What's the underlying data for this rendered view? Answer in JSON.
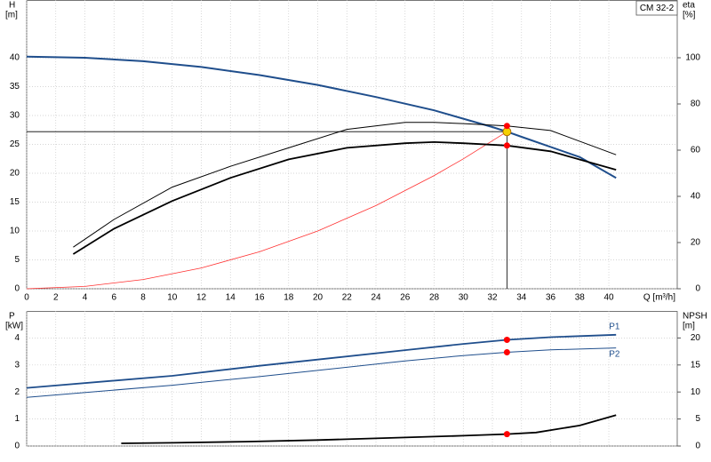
{
  "chart_data": [
    {
      "type": "line",
      "title": "CM 32-2",
      "x_label": "Q [m³/h]",
      "y_label": "H",
      "y_unit": "[m]",
      "y2_label": "eta",
      "y2_unit": "[%]",
      "xlim": [
        0,
        44.7
      ],
      "xticks": [
        0,
        2,
        4,
        6,
        8,
        10,
        12,
        14,
        16,
        18,
        20,
        22,
        24,
        26,
        28,
        30,
        32,
        34,
        36,
        38,
        40
      ],
      "ylim": [
        0,
        50
      ],
      "yticks": [
        0,
        5,
        10,
        15,
        20,
        25,
        30,
        35,
        40
      ],
      "y2lim": [
        0,
        125
      ],
      "y2ticks": [
        0,
        20,
        40,
        60,
        80,
        100
      ],
      "grid": true,
      "duty_lines": true,
      "series": [
        {
          "color": "#1f4e8c",
          "width": 2,
          "x": [
            0,
            4,
            8,
            12,
            16,
            20,
            24,
            28,
            32,
            33,
            34,
            38,
            40.5
          ],
          "values": [
            40.2,
            40,
            39.4,
            38.4,
            37,
            35.3,
            33.2,
            30.9,
            28,
            27.2,
            26.3,
            22.8,
            19.2
          ]
        },
        {
          "color": "#ff3030",
          "width": 0.8,
          "x": [
            0,
            4,
            8,
            12,
            16,
            20,
            24,
            28,
            30,
            33
          ],
          "values": [
            0,
            0.4,
            1.6,
            3.6,
            6.4,
            10,
            14.4,
            19.6,
            22.5,
            27.2
          ]
        },
        {
          "color": "#000000",
          "width": 1,
          "axis": "y2",
          "x": [
            3.2,
            6,
            10,
            14,
            18,
            22,
            26,
            28,
            30,
            33,
            36,
            40.5
          ],
          "values": [
            18,
            30,
            44,
            53,
            61,
            69,
            72,
            72,
            71.5,
            70.5,
            68.5,
            58
          ]
        },
        {
          "color": "#000000",
          "width": 1.8,
          "axis": "y2",
          "x": [
            3.2,
            6,
            10,
            14,
            18,
            22,
            26,
            28,
            30,
            33,
            36,
            40.5
          ],
          "values": [
            15,
            26,
            38,
            48,
            56,
            61,
            63,
            63.5,
            63,
            62,
            59.5,
            51.5
          ]
        }
      ],
      "markers": [
        {
          "x": 33,
          "value": 27.2,
          "color": "#f5d000"
        },
        {
          "x": 33,
          "value": 70.5,
          "axis": "y2",
          "color": "#ff0000"
        },
        {
          "x": 33,
          "value": 62,
          "axis": "y2",
          "color": "#ff0000"
        }
      ]
    },
    {
      "type": "line",
      "y_label": "P",
      "y_unit": "[kW]",
      "y2_label": "NPSH",
      "y2_unit": "[m]",
      "xlim": [
        0,
        44.7
      ],
      "xticks": [
        0,
        2,
        4,
        6,
        8,
        10,
        12,
        14,
        16,
        18,
        20,
        22,
        24,
        26,
        28,
        30,
        32,
        34,
        36,
        38,
        40
      ],
      "ylim": [
        0,
        5
      ],
      "yticks": [
        0,
        1,
        2,
        3,
        4
      ],
      "y2lim": [
        0,
        25
      ],
      "y2ticks": [
        0,
        5,
        10,
        15,
        20
      ],
      "grid": true,
      "series": [
        {
          "label": "P1",
          "color": "#1f4e8c",
          "width": 1.8,
          "x": [
            0,
            10,
            16,
            20,
            26,
            30,
            33,
            36,
            40.5
          ],
          "values": [
            2.15,
            2.6,
            2.97,
            3.2,
            3.55,
            3.78,
            3.93,
            4.03,
            4.12
          ]
        },
        {
          "label": "P2",
          "color": "#1f4e8c",
          "width": 1,
          "x": [
            0,
            10,
            16,
            20,
            26,
            30,
            33,
            36,
            40.5
          ],
          "values": [
            1.8,
            2.25,
            2.57,
            2.8,
            3.15,
            3.35,
            3.47,
            3.56,
            3.63
          ]
        },
        {
          "color": "#000000",
          "width": 1.8,
          "axis": "y2",
          "x": [
            6.5,
            10,
            15,
            20,
            25,
            30,
            33,
            35,
            38,
            40.5
          ],
          "values": [
            0.5,
            0.6,
            0.8,
            1.1,
            1.5,
            1.9,
            2.2,
            2.5,
            3.8,
            5.7
          ]
        }
      ],
      "markers": [
        {
          "x": 33,
          "value": 3.93,
          "color": "#ff0000"
        },
        {
          "x": 33,
          "value": 3.47,
          "color": "#ff0000"
        },
        {
          "x": 33,
          "value": 2.2,
          "axis": "y2",
          "color": "#ff0000"
        }
      ]
    }
  ]
}
